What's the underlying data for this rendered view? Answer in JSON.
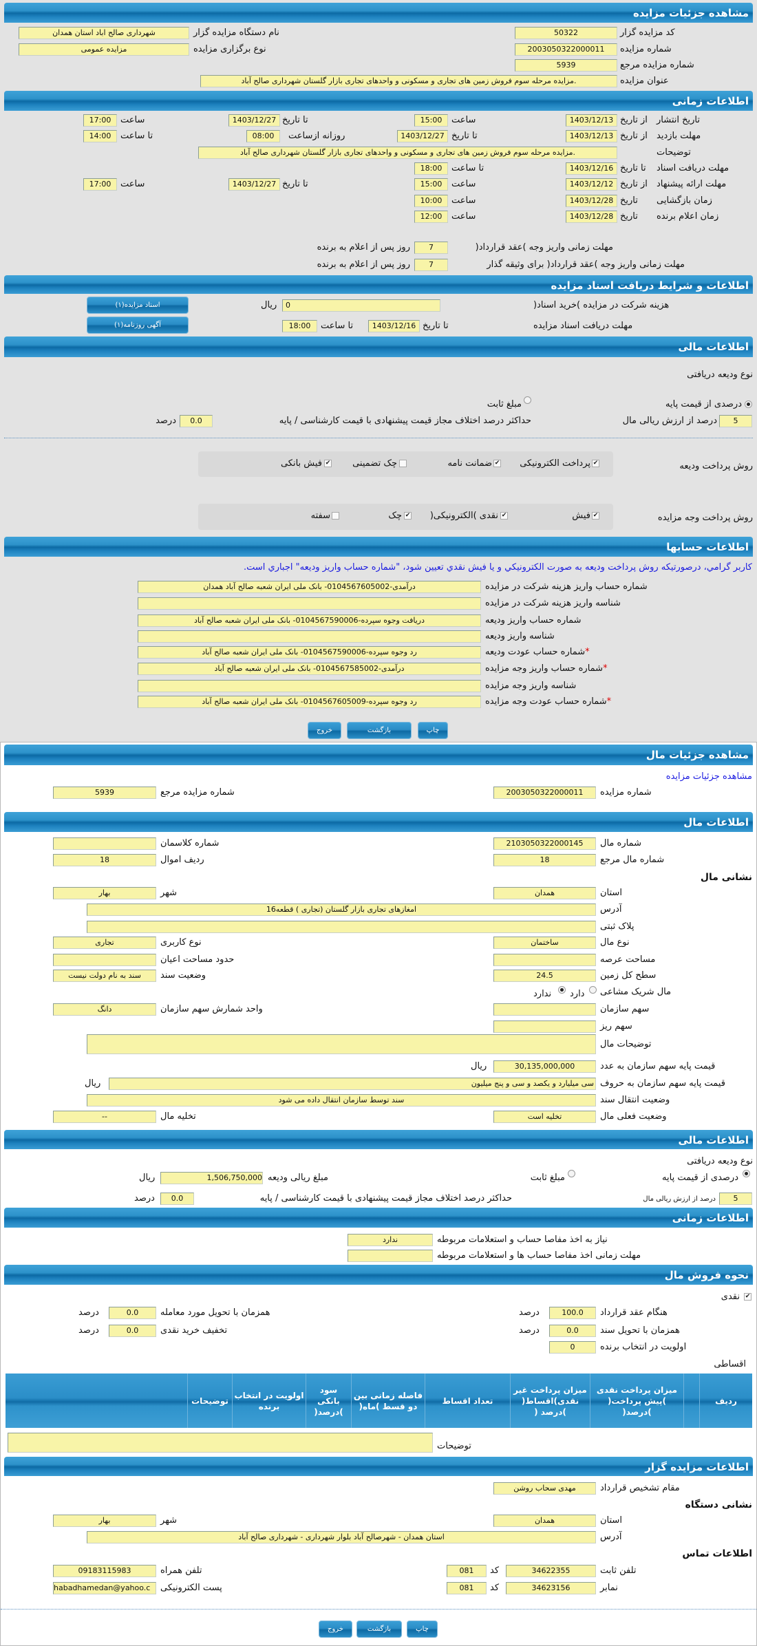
{
  "auction": {
    "title": "مشاهده جزئیات مزایده",
    "code_label": "کد مزایده گزار",
    "code": "50322",
    "org_label": "نام دستگاه مزایده گزار",
    "org": "شهرداری صالح اباد استان همدان",
    "no_label": "شماره مزایده",
    "no": "2003050322000011",
    "type_label": "نوع برگزاری مزایده",
    "type": "مزایده عمومی",
    "ref_label": "شماره مزایده مرجع",
    "ref": "5939",
    "subject_label": "عنوان مزایده",
    "subject": "مزایده مرحله سوم فروش زمین های تجاری و مسکونی و واحدهای تجاری بازار گلستان شهرداری صالح آباد."
  },
  "timing": {
    "title": "اطلاعات زمانی",
    "from_date": "از تاریخ",
    "to_date": "تا تاریخ",
    "date": "تاریخ",
    "hour": "ساعت",
    "to_hour": "تا ساعت",
    "daily_from": "روزانه ازساعت",
    "publish_label": "تاریخ انتشار",
    "publish_from": "1403/12/13",
    "publish_from_time": "15:00",
    "publish_to": "1403/12/27",
    "publish_to_time": "17:00",
    "visit_label": "مهلت بازدید",
    "visit_from": "1403/12/13",
    "visit_to": "1403/12/27",
    "visit_daily_from": "08:00",
    "visit_to_time": "14:00",
    "desc_label": "توضیحات",
    "desc": "مزایده مرحله سوم فروش زمین های تجاری و مسکونی و واحدهای تجاری بازار گلستان شهرداری صالح آباد.",
    "docs_label": "مهلت دریافت اسناد",
    "docs_to": "1403/12/16",
    "docs_to_time": "18:00",
    "offer_label": "مهلت ارائه پیشنهاد",
    "offer_from": "1403/12/12",
    "offer_from_time": "15:00",
    "offer_to": "1403/12/27",
    "offer_to_time": "17:00",
    "open_label": "زمان بازگشایی",
    "open_date": "1403/12/28",
    "open_time": "10:00",
    "winner_label": "زمان اعلام برنده",
    "winner_date": "1403/12/28",
    "winner_time": "12:00",
    "pay_label": "مهلت زمانی واریز وجه )عقد قرارداد(",
    "pay_days": "7",
    "days_suffix": "روز پس از اعلام به برنده",
    "pay2_label": "مهلت زمانی واریز وجه )عقد قرارداد( برای وثیقه گذار",
    "pay2_days": "7"
  },
  "docs": {
    "title": "اطلاعات و شرایط دریافت اسناد مزایده",
    "fee_label": "هزینه شرکت در مزایده )خرید اسناد(",
    "fee": "0",
    "rial": "ریال",
    "deadline_label": "مهلت دریافت اسناد مزایده",
    "to_date": "تا تاریخ",
    "date": "1403/12/16",
    "to_hour": "تا ساعت",
    "time": "18:00",
    "btn_docs": "اسناد مزایده(۱)",
    "btn_ad": "آگهی روزنامه(۱)"
  },
  "finance": {
    "title": "اطلاعات مالی",
    "deposit_type_label": "نوع ودیعه دریافتی",
    "opt_percent": "درصدی از قیمت پایه",
    "opt_fixed": "مبلغ ثابت",
    "percent": "5",
    "percent_suffix": "درصد از ارزش ریالی مال",
    "max_diff_label": "حداکثر درصد اختلاف مجاز قیمت پیشنهادی با قیمت کارشناسی / پایه",
    "max_diff": "0.0",
    "percent_word": "درصد",
    "deposit_method_label": "روش پرداخت ودیعه",
    "deposit_methods": [
      {
        "label": "پرداخت الکترونیکی",
        "checked": true
      },
      {
        "label": "ضمانت نامه",
        "checked": true
      },
      {
        "label": "چک تضمینی",
        "checked": false
      },
      {
        "label": "فیش بانکی",
        "checked": true
      }
    ],
    "payment_method_label": "روش پرداخت وجه مزایده",
    "payment_methods": [
      {
        "label": "فیش",
        "checked": true
      },
      {
        "label": "نقدی )الکترونیکی(",
        "checked": true
      },
      {
        "label": "چک",
        "checked": true
      },
      {
        "label": "سفته",
        "checked": false
      }
    ]
  },
  "accounts": {
    "title": "اطلاعات حسابها",
    "notice": "کاربر گرامي، درصورتيکه روش پرداخت وديعه به صورت الکترونيکي و يا فيش نقدي تعيين شود، \"شماره حساب واريز وديعه\" اجباري است.",
    "rows": [
      {
        "label": "شماره حساب واریز هزینه شرکت در مزایده",
        "value": "درآمدی-0104567605002- بانک ملی ایران شعبه صالح آباد همدان"
      },
      {
        "label": "شناسه واریز هزینه شرکت در مزایده",
        "value": ""
      },
      {
        "label": "شماره حساب واریز ودیعه",
        "value": "دریافت وجوه سپرده-0104567590006- بانک ملی ایران شعبه صالح آباد"
      },
      {
        "label": "شناسه واریز ودیعه",
        "value": ""
      },
      {
        "label": "شماره حساب عودت ودیعه",
        "value": "رد وجوه سپرده-0104567590006- بانک ملی ایران شعبه صالح آباد",
        "required": "*"
      },
      {
        "label": "شماره حساب واریز وجه مزایده",
        "value": "درآمدی-0104567585002- بانک ملی ایران شعبه صالح آباد",
        "required": "*"
      },
      {
        "label": "شناسه واریز وجه مزایده",
        "value": ""
      },
      {
        "label": "شماره حساب عودت وجه مزایده",
        "value": "رد وجوه سپرده-0104567605009- بانک ملی ایران شعبه صالح آباد",
        "required": "*"
      }
    ]
  },
  "buttons": {
    "print": "چاپ",
    "back": "بازگشت",
    "exit": "خروج"
  },
  "item": {
    "title": "مشاهده جزئیات مال",
    "link": "مشاهده جزئیات مزایده",
    "no_label": "شماره مزایده",
    "no": "2003050322000011",
    "ref_label": "شماره مزایده مرجع",
    "ref": "5939"
  },
  "item_info": {
    "title": "اطلاعات مال",
    "item_no_label": "شماره مال",
    "item_no": "2103050322000145",
    "class_label": "شماره کلاسمان",
    "class_no": "",
    "item_ref_label": "شماره مال مرجع",
    "item_ref": "18",
    "row_label": "ردیف اموال",
    "row": "18",
    "address_title": "نشانی مال",
    "province_label": "استان",
    "province": "همدان",
    "city_label": "شهر",
    "city": "بهار",
    "address_label": "آدرس",
    "address": "امغازهای تجاری بازار گلستان  (تجاری ) قطعه16",
    "plate_label": "پلاک ثبتی",
    "plate": "",
    "kind_label": "نوع مال",
    "kind": "ساختمان",
    "usage_label": "نوع کاربری",
    "usage": "تجاری",
    "land_area_label": "مساحت عرصه",
    "land_area": "",
    "building_area_label": "حدود مساحت اعیان",
    "building_area": "",
    "total_area_label": "سطح کل زمین",
    "total_area": "24.5",
    "deed_label": "وضعیت سند",
    "deed": "سند به نام دولت نیست",
    "shared_label": "مال شریک مشاعی",
    "shared_yes": "دارد",
    "shared_no": "ندارد",
    "share_label": "سهم سازمان",
    "share": "",
    "share_unit_label": "واحد شمارش سهم سازمان",
    "share_unit": "دانگ",
    "small_share_label": "سهم ریز",
    "small_share": "",
    "desc_label": "توضیحات مال",
    "desc": "",
    "price_label": "قیمت پایه سهم سازمان به عدد",
    "price": "30,135,000,000",
    "price_words_label": "قیمت پایه سهم سازمان به حروف",
    "price_words": "سی میلیارد و یکصد و سی و پنج میلیون",
    "rial": "ریال",
    "transfer_label": "وضعیت انتقال سند",
    "transfer": "سند توسط سازمان انتقال داده می شود",
    "status_label": "وضعیت فعلی مال",
    "status": "تخلیه است",
    "evac_label": "تخلیه مال",
    "evac": "--"
  },
  "item_finance": {
    "title": "اطلاعات مالی",
    "deposit_type_label": "نوع ودیعه دریافتی",
    "opt_percent": "درصدی از قیمت پایه",
    "opt_fixed": "مبلغ ثابت",
    "deposit_amount_label": "مبلغ ریالی ودیعه",
    "deposit_amount": "1,506,750,000",
    "rial": "ریال",
    "percent": "5",
    "percent_suffix": "درصد از ارزش ریالی مال",
    "max_diff_label": "حداکثر درصد اختلاف مجاز قیمت پیشنهادی با قیمت کارشناسی / پایه",
    "max_diff": "0.0",
    "percent_word": "درصد"
  },
  "item_timing": {
    "title": "اطلاعات زمانی",
    "clearance_label": "نیاز به اخذ مفاصا حساب و استعلامات مربوطه",
    "clearance": "ندارد",
    "clearance_deadline_label": "مهلت زمانی اخذ مفاصا حساب ها و استعلامات مربوطه",
    "clearance_deadline": ""
  },
  "sale": {
    "title": "نحوه فروش مال",
    "cash_label": "نقدی",
    "contract_label": "هنگام عقد قرارداد",
    "contract": "100.0",
    "delivery_label": "همزمان با تحویل مورد معامله",
    "delivery": "0.0",
    "deed_label": "همزمان با تحویل سند",
    "deed": "0.0",
    "discount_label": "تخفیف خرید نقدی",
    "discount": "0.0",
    "priority_label": "اولویت در انتخاب برنده",
    "priority": "0",
    "percent_word": "درصد",
    "installment_label": "اقساطی",
    "columns": [
      "ردیف",
      "",
      "میزان پرداخت نقدی )پیش پرداخت( )درصد(",
      "میزان پرداخت غیر نقدی)اقساط( )درصد (",
      "تعداد اقساط",
      "فاصله زمانی بین دو قسط )ماه(",
      "سود بانکی )درصد(",
      "اولویت در انتخاب برنده",
      "توضیحات",
      ""
    ],
    "notes_label": "توضیحات",
    "notes": ""
  },
  "auctioneer": {
    "title": "اطلاعات مزایده گزار",
    "authority_label": "مقام تشخیص قرارداد",
    "authority": "مهدی سحاب روشن",
    "address_title": "نشانی دستگاه",
    "province_label": "استان",
    "province": "همدان",
    "city_label": "شهر",
    "city": "بهار",
    "address_label": "آدرس",
    "address": "استان همدان - شهرصالح آباد بلوار شهرداری - شهرداری صالح آباد",
    "contact_title": "اطلاعات تماس",
    "phone_label": "تلفن ثابت",
    "phone": "34622355",
    "code_label": "کد",
    "phone_code": "081",
    "mobile_label": "تلفن همراه",
    "mobile": "09183115983",
    "fax_label": "نمابر",
    "fax": "34623156",
    "fax_code": "081",
    "email_label": "پست الکترونیکی",
    "email": "habadhamedan@yahoo.c"
  },
  "colors": {
    "header": "#1f84c0",
    "field": "#f8f4a8",
    "panel": "#e3e3e3",
    "link": "#1b1be0",
    "required": "#dd0000"
  }
}
